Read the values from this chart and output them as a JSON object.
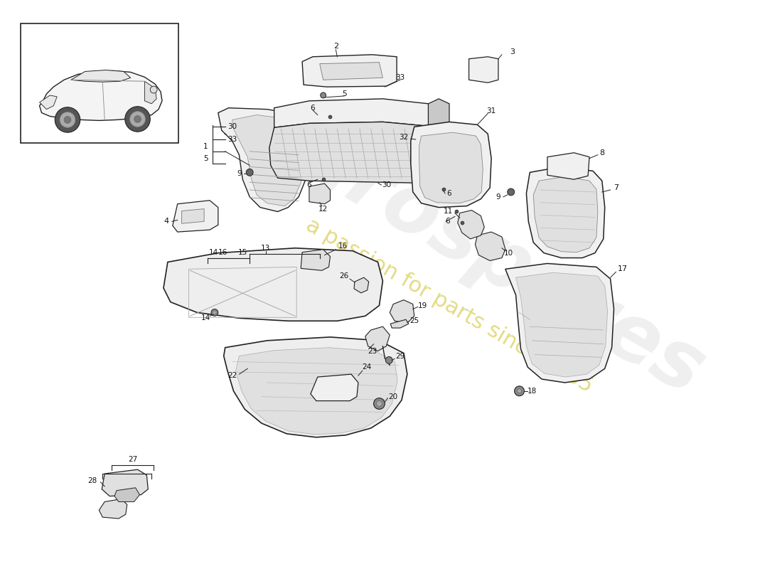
{
  "bg_color": "#ffffff",
  "line_color": "#222222",
  "fill_light": "#f0f0f0",
  "fill_mid": "#e0e0e0",
  "fill_dark": "#c8c8c8",
  "watermark1_color": "#d8d8d8",
  "watermark2_color": "#e8d870",
  "fig_w": 11.0,
  "fig_h": 8.0,
  "dpi": 100
}
